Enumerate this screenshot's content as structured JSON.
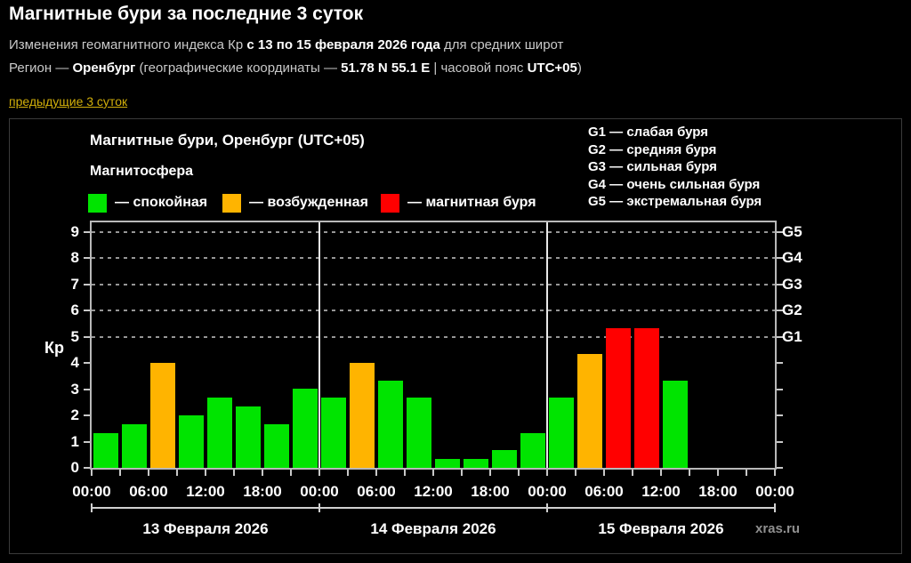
{
  "page": {
    "title": "Магнитные бури за последние 3 суток",
    "subtitle_segments": [
      {
        "text": "Изменения геомагнитного индекса Кр "
      },
      {
        "text": "с 13 по 15 февраля 2026 года"
      },
      {
        "text": " для средних широт"
      }
    ],
    "region_segments": [
      {
        "text": "Регион — "
      },
      {
        "text": "Оренбург"
      },
      {
        "text": " (географические координаты — "
      },
      {
        "text": "51.78 N 55.1 E"
      },
      {
        "text": " | часовой пояс "
      },
      {
        "text": "UTC+05"
      },
      {
        "text": ")"
      }
    ],
    "prev_link": "предыдущие 3 суток"
  },
  "chart": {
    "title": "Магнитные бури, Оренбург (UTC+05)",
    "legend_title": "Магнитосфера",
    "legend": [
      {
        "color": "#00e400",
        "label": "— спокойная"
      },
      {
        "color": "#ffb400",
        "label": "— возбужденная"
      },
      {
        "color": "#ff0000",
        "label": "— магнитная буря"
      }
    ],
    "g_legend": [
      "G1 — слабая буря",
      "G2 — средняя буря",
      "G3 — сильная буря",
      "G4 — очень сильная буря",
      "G5 — экстремальная буря"
    ],
    "ylabel": "Кр",
    "watermark": "xras.ru"
  },
  "chart_data": {
    "type": "bar",
    "title": "Магнитные бури, Оренбург (UTC+05)",
    "ylabel": "Кр",
    "ylim": [
      0,
      9.35
    ],
    "yticks": [
      0,
      1,
      2,
      3,
      4,
      5,
      6,
      7,
      8,
      9
    ],
    "gridlines_at": [
      5,
      6,
      7,
      8,
      9
    ],
    "right_axis_labels": {
      "5": "G1",
      "6": "G2",
      "7": "G3",
      "8": "G4",
      "9": "G5"
    },
    "x_tick_labels": [
      "00:00",
      "06:00",
      "12:00",
      "18:00",
      "00:00",
      "06:00",
      "12:00",
      "18:00",
      "00:00",
      "06:00",
      "12:00",
      "18:00",
      "00:00"
    ],
    "hours_per_bar": 3,
    "days": [
      {
        "label": "13 Февраля 2026",
        "values": [
          1.33,
          1.67,
          4.0,
          2.0,
          2.67,
          2.33,
          1.67,
          3.0
        ]
      },
      {
        "label": "14 Февраля 2026",
        "values": [
          2.67,
          4.0,
          3.33,
          2.67,
          0.33,
          0.33,
          0.67,
          1.33
        ]
      },
      {
        "label": "15 Февраля 2026",
        "values": [
          2.67,
          4.33,
          5.33,
          5.33,
          3.33
        ]
      }
    ],
    "color_rules": {
      "quiet_below": 4,
      "excited_below": 5,
      "quiet": "#00e400",
      "excited": "#ffb400",
      "storm": "#ff0000"
    },
    "legend_position": "top-left",
    "grid": "dashed horizontal at Kp 5-9 only"
  }
}
